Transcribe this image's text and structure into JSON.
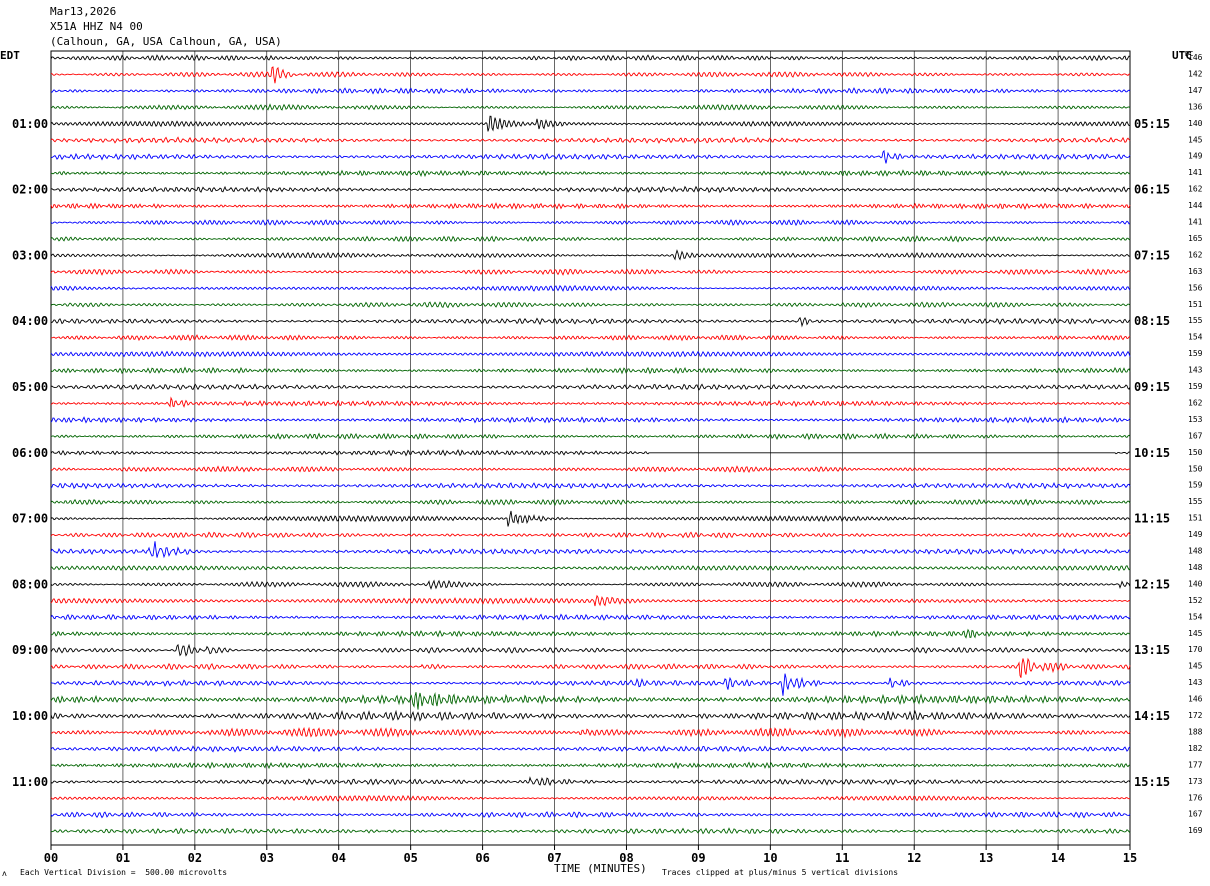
{
  "header": {
    "date": "Mar13,2026",
    "station": "X51A HHZ N4 00",
    "location": "(Calhoun, GA, USA Calhoun, GA, USA)"
  },
  "labels": {
    "left_tz": "EDT",
    "right_tz": "UTC",
    "dc": "DC",
    "footer_left": "Each Vertical Division =  500.00 microvolts",
    "footer_right": "Traces clipped at plus/minus 5 vertical divisions",
    "logo_glyph": "ʌ"
  },
  "chart_data": {
    "type": "line",
    "title": "X51A HHZ N4 00",
    "xlabel": "TIME (MINUTES)",
    "xlim": [
      0,
      15
    ],
    "x_ticks": [
      "00",
      "01",
      "02",
      "03",
      "04",
      "05",
      "06",
      "07",
      "08",
      "09",
      "10",
      "11",
      "12",
      "13",
      "14",
      "15"
    ],
    "colors": [
      "#000000",
      "#ff0000",
      "#0000ff",
      "#006400"
    ],
    "grid": true,
    "left_hour_labels": [
      "01:00",
      "02:00",
      "03:00",
      "04:00",
      "05:00",
      "06:00",
      "07:00",
      "08:00",
      "09:00",
      "10:00",
      "11:00"
    ],
    "right_hour_labels": [
      "05:15",
      "06:15",
      "07:15",
      "08:15",
      "09:15",
      "10:15",
      "11:15",
      "12:15",
      "13:15",
      "14:15",
      "15:15"
    ],
    "hour_label_rows": [
      4,
      8,
      12,
      16,
      20,
      24,
      28,
      32,
      36,
      40,
      44
    ],
    "dc_offsets": [
      146,
      142,
      147,
      136,
      140,
      145,
      149,
      141,
      162,
      144,
      141,
      165,
      162,
      163,
      156,
      151,
      155,
      154,
      159,
      143,
      159,
      162,
      153,
      167,
      150,
      150,
      159,
      155,
      151,
      149,
      148,
      148,
      140,
      152,
      154,
      145,
      170,
      145,
      143,
      146,
      172,
      188,
      182,
      177,
      173,
      176,
      167,
      169
    ],
    "flat_segment": {
      "row": 24,
      "x_from": 8.3,
      "x_to": 14.8
    },
    "events": [
      {
        "row": 1,
        "x": 3.1,
        "amp": 2.2,
        "dur": 0.3
      },
      {
        "row": 4,
        "x": 6.1,
        "amp": 2.2,
        "dur": 0.5
      },
      {
        "row": 4,
        "x": 6.8,
        "amp": 1.5,
        "dur": 0.4
      },
      {
        "row": 6,
        "x": 11.6,
        "amp": 1.6,
        "dur": 0.3
      },
      {
        "row": 12,
        "x": 8.7,
        "amp": 1.5,
        "dur": 0.3
      },
      {
        "row": 16,
        "x": 10.4,
        "amp": 1.5,
        "dur": 0.3
      },
      {
        "row": 21,
        "x": 1.7,
        "amp": 1.4,
        "dur": 0.3
      },
      {
        "row": 28,
        "x": 6.4,
        "amp": 3.5,
        "dur": 0.8
      },
      {
        "row": 30,
        "x": 1.4,
        "amp": 2.6,
        "dur": 0.6
      },
      {
        "row": 32,
        "x": 5.3,
        "amp": 1.4,
        "dur": 0.5
      },
      {
        "row": 32,
        "x": 14.9,
        "amp": 2.0,
        "dur": 0.3
      },
      {
        "row": 33,
        "x": 7.6,
        "amp": 1.2,
        "dur": 0.6
      },
      {
        "row": 35,
        "x": 12.7,
        "amp": 1.4,
        "dur": 0.3
      },
      {
        "row": 36,
        "x": 1.8,
        "amp": 1.6,
        "dur": 0.5
      },
      {
        "row": 36,
        "x": 2.2,
        "amp": 1.6,
        "dur": 0.3
      },
      {
        "row": 37,
        "x": 5.2,
        "amp": 1.2,
        "dur": 0.3
      },
      {
        "row": 37,
        "x": 13.5,
        "amp": 3.0,
        "dur": 0.7
      },
      {
        "row": 38,
        "x": 8.1,
        "amp": 1.2,
        "dur": 0.3
      },
      {
        "row": 38,
        "x": 9.4,
        "amp": 1.6,
        "dur": 0.4
      },
      {
        "row": 38,
        "x": 10.2,
        "amp": 3.0,
        "dur": 0.5
      },
      {
        "row": 38,
        "x": 11.7,
        "amp": 1.5,
        "dur": 0.4
      },
      {
        "row": 39,
        "x": 5.0,
        "amp": 2.0,
        "dur": 0.8
      },
      {
        "row": 41,
        "x": 7.4,
        "amp": 1.5,
        "dur": 0.5
      },
      {
        "row": 44,
        "x": 6.7,
        "amp": 1.3,
        "dur": 0.9
      }
    ]
  }
}
